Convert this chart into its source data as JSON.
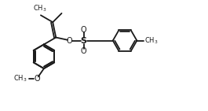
{
  "bg_color": "#ffffff",
  "bond_color": "#1a1a1a",
  "line_width": 1.3,
  "fig_width": 2.65,
  "fig_height": 1.41,
  "dpi": 100,
  "font_size": 6.5,
  "ring_r": 0.38,
  "xlim": [
    0,
    6.5
  ],
  "ylim": [
    0,
    3.5
  ]
}
